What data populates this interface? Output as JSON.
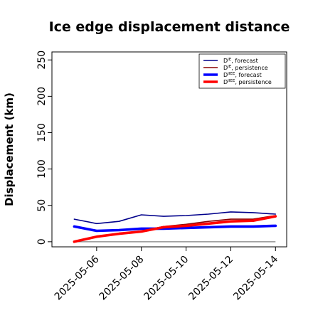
{
  "chart_data": {
    "type": "line",
    "title": "Ice edge displacement distance",
    "ylabel": "Displacement (km)",
    "xlabel": "",
    "ylim": [
      -7,
      261
    ],
    "yticks": [
      0,
      50,
      100,
      150,
      200,
      250
    ],
    "xlim": [
      "2025-05-04",
      "2025-05-14.5"
    ],
    "xticks": [
      "2025-05-06",
      "2025-05-08",
      "2025-05-10",
      "2025-05-12",
      "2025-05-14"
    ],
    "highlight_tick": "2025-05-06",
    "highlight_color": "#228b22",
    "grid": false,
    "legend_position": "top-right",
    "x": [
      "2025-05-05",
      "2025-05-06",
      "2025-05-07",
      "2025-05-08",
      "2025-05-09",
      "2025-05-10",
      "2025-05-11",
      "2025-05-12",
      "2025-05-13",
      "2025-05-14"
    ],
    "series": [
      {
        "legend_main": "D",
        "legend_sup": "IE",
        "legend_rest": ", forecast",
        "color": "#00008b",
        "width": 1.6,
        "values": [
          31,
          25,
          28,
          37,
          35,
          36,
          38,
          41,
          40,
          38
        ]
      },
      {
        "legend_main": "D",
        "legend_sup": "IE",
        "legend_rest": ", persistence",
        "color": "#8b0000",
        "width": 1.6,
        "values": [
          0,
          7,
          11,
          15,
          21,
          24,
          28,
          31,
          31,
          36
        ]
      },
      {
        "legend_main": "D",
        "legend_sup": "IIEE",
        "legend_rest": ", forecast",
        "color": "#0000ff",
        "width": 3.6,
        "values": [
          21,
          15,
          16,
          18,
          18,
          19,
          20,
          21,
          21,
          22
        ]
      },
      {
        "legend_main": "D",
        "legend_sup": "IIEE",
        "legend_rest": ", persistence",
        "color": "#ff0000",
        "width": 3.6,
        "values": [
          0,
          7,
          11,
          14,
          20,
          22,
          25,
          28,
          29,
          35
        ]
      }
    ],
    "baseline": {
      "value": 0,
      "color": "#808080"
    }
  }
}
